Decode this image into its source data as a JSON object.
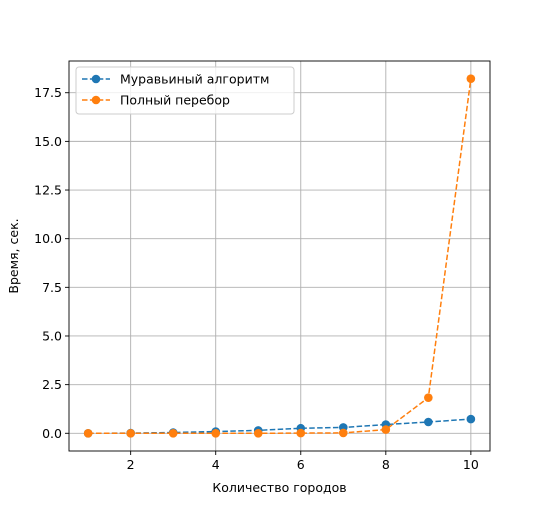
{
  "chart_data": {
    "type": "line",
    "title": "",
    "xlabel": "Количество городов",
    "ylabel": "Время, сек.",
    "x": [
      1,
      2,
      3,
      4,
      5,
      6,
      7,
      8,
      9,
      10
    ],
    "xlim": [
      0.55,
      10.45
    ],
    "ylim": [
      -0.91,
      19.13
    ],
    "xticks": [
      2,
      4,
      6,
      8,
      10
    ],
    "xtick_labels": [
      "2",
      "4",
      "6",
      "8",
      "10"
    ],
    "yticks": [
      0.0,
      2.5,
      5.0,
      7.5,
      10.0,
      12.5,
      15.0,
      17.5
    ],
    "ytick_labels": [
      "0.0",
      "2.5",
      "5.0",
      "7.5",
      "10.0",
      "12.5",
      "15.0",
      "17.5"
    ],
    "grid": true,
    "legend_position": "top-left",
    "series": [
      {
        "name": "Муравьиный алгоритм",
        "color": "#1f77b4",
        "line_style": "dashed",
        "marker": "circle",
        "values": [
          0.0,
          0.01,
          0.04,
          0.09,
          0.15,
          0.26,
          0.3,
          0.45,
          0.58,
          0.73
        ]
      },
      {
        "name": "Полный перебор",
        "color": "#ff7f0e",
        "line_style": "dashed",
        "marker": "circle",
        "values": [
          0.0,
          0.0,
          0.0,
          0.0,
          0.0,
          0.01,
          0.02,
          0.19,
          1.83,
          18.22
        ]
      }
    ]
  }
}
